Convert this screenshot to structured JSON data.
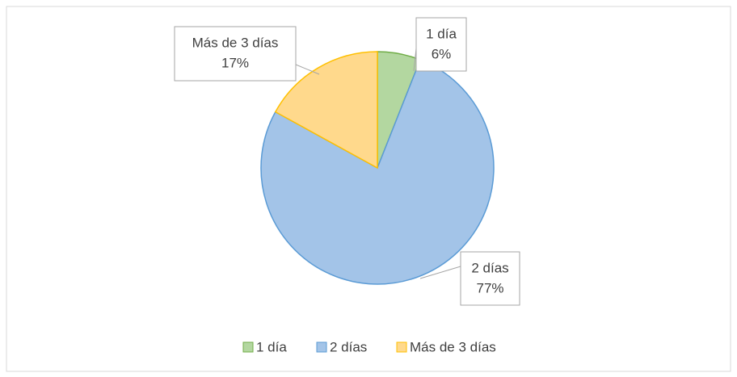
{
  "chart_data": {
    "type": "pie",
    "categories": [
      "1 día",
      "2 días",
      "Más de 3 días"
    ],
    "values": [
      6,
      77,
      17
    ],
    "value_labels": [
      "6%",
      "77%",
      "17%"
    ],
    "colors": [
      "#b3d7a0",
      "#a3c4e8",
      "#ffd98c"
    ],
    "legend": "bottom"
  }
}
